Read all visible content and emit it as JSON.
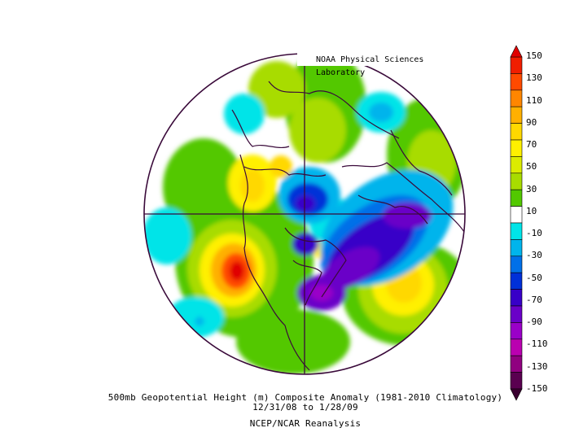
{
  "credit": "NOAA Physical Sciences Laboratory",
  "caption": {
    "line1": "500mb Geopotential Height (m) Composite Anomaly (1981-2010 Climatology)",
    "line2": "12/31/08  to 1/28/09",
    "line3": "NCEP/NCAR Reanalysis"
  },
  "colorbar": {
    "labels": [
      "150",
      "130",
      "110",
      "90",
      "70",
      "50",
      "30",
      "10",
      "-10",
      "-30",
      "-50",
      "-70",
      "-90",
      "-110",
      "-130",
      "-150"
    ],
    "colors": [
      "#f01e00",
      "#ff4a00",
      "#ff8600",
      "#ffb000",
      "#ffd800",
      "#fff000",
      "#dcec00",
      "#a8dc00",
      "#52c800",
      "#ffffff",
      "#00e4e8",
      "#00b4ec",
      "#0070e8",
      "#0030d8",
      "#3800c8",
      "#6a00c8",
      "#9a00c8",
      "#ba00b0",
      "#900080",
      "#5a0050"
    ]
  }
}
